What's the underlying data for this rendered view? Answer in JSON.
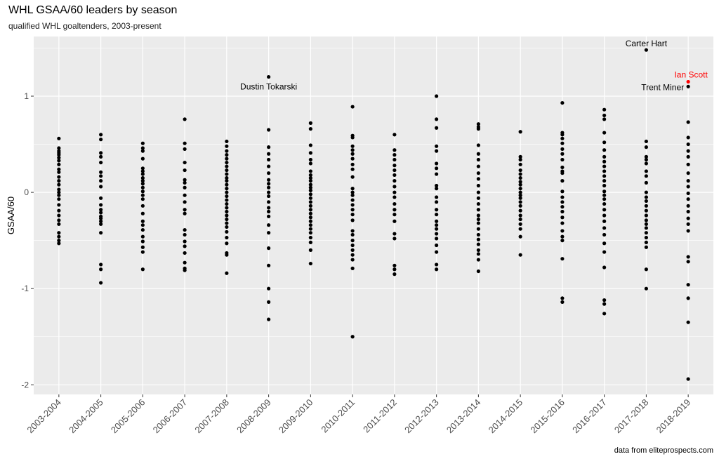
{
  "title": "WHL GSAA/60 leaders by season",
  "subtitle": "qualified WHL goaltenders, 2003-present",
  "caption": "data from eliteprospects.com",
  "colors": {
    "panel": "#ebebeb",
    "grid": "#ffffff",
    "point": "#000000",
    "highlight": "#ff0000"
  },
  "chart_data": {
    "type": "scatter",
    "xlabel": "",
    "ylabel": "GSAA/60",
    "ylim": [
      -2.1,
      1.62
    ],
    "yticks": [
      -2,
      -1,
      0,
      1
    ],
    "categories": [
      "2003-2004",
      "2004-2005",
      "2005-2006",
      "2006-2007",
      "2007-2008",
      "2008-2009",
      "2009-2010",
      "2010-2011",
      "2011-2012",
      "2012-2013",
      "2013-2014",
      "2014-2015",
      "2015-2016",
      "2016-2017",
      "2017-2018",
      "2018-2019"
    ],
    "series": [
      {
        "values": [
          [
            0.56,
            0.46,
            0.43,
            0.41,
            0.39,
            0.36,
            0.33,
            0.29,
            0.24,
            0.21,
            0.16,
            0.12,
            0.08,
            0.03,
            0.0,
            -0.03,
            -0.07,
            -0.13,
            -0.19,
            -0.24,
            -0.29,
            -0.33,
            -0.42,
            -0.46,
            -0.5,
            -0.53
          ],
          [
            0.6,
            0.55,
            0.41,
            0.37,
            0.31,
            0.21,
            0.17,
            0.12,
            0.06,
            -0.06,
            -0.13,
            -0.18,
            -0.21,
            -0.25,
            -0.27,
            -0.3,
            -0.33,
            -0.42,
            -0.75,
            -0.8,
            -0.94
          ],
          [
            0.51,
            0.46,
            0.43,
            0.35,
            0.25,
            0.22,
            0.19,
            0.15,
            0.12,
            0.09,
            0.05,
            0.01,
            -0.03,
            -0.07,
            -0.14,
            -0.22,
            -0.3,
            -0.34,
            -0.39,
            -0.46,
            -0.51,
            -0.57,
            -0.62,
            -0.8
          ],
          [
            0.76,
            0.51,
            0.45,
            0.31,
            0.23,
            0.13,
            0.1,
            0.05,
            -0.03,
            -0.1,
            -0.18,
            -0.22,
            -0.39,
            -0.44,
            -0.51,
            -0.56,
            -0.63,
            -0.73,
            -0.79,
            -0.81
          ],
          [
            0.53,
            0.48,
            0.43,
            0.39,
            0.35,
            0.31,
            0.27,
            0.23,
            0.19,
            0.15,
            0.12,
            0.08,
            0.04,
            0.0,
            -0.04,
            -0.08,
            -0.12,
            -0.16,
            -0.2,
            -0.24,
            -0.28,
            -0.32,
            -0.36,
            -0.41,
            -0.47,
            -0.53,
            -0.63,
            -0.65,
            -0.84
          ],
          [
            1.2,
            0.65,
            0.47,
            0.4,
            0.34,
            0.27,
            0.2,
            0.13,
            0.09,
            0.05,
            0.0,
            -0.04,
            -0.1,
            -0.16,
            -0.2,
            -0.25,
            -0.34,
            -0.42,
            -0.58,
            -0.76,
            -1.0,
            -1.14,
            -1.32
          ],
          [
            0.72,
            0.66,
            0.49,
            0.41,
            0.34,
            0.3,
            0.22,
            0.18,
            0.15,
            0.12,
            0.08,
            0.05,
            0.02,
            -0.02,
            -0.06,
            -0.1,
            -0.14,
            -0.18,
            -0.22,
            -0.26,
            -0.3,
            -0.34,
            -0.38,
            -0.42,
            -0.47,
            -0.52,
            -0.6,
            -0.74
          ],
          [
            0.89,
            0.59,
            0.57,
            0.48,
            0.44,
            0.4,
            0.35,
            0.29,
            0.24,
            0.16,
            0.04,
            0.0,
            -0.03,
            -0.08,
            -0.13,
            -0.18,
            -0.23,
            -0.29,
            -0.4,
            -0.44,
            -0.5,
            -0.55,
            -0.6,
            -0.65,
            -0.7,
            -0.79,
            -1.5
          ],
          [
            0.6,
            0.44,
            0.39,
            0.34,
            0.28,
            0.23,
            0.18,
            0.12,
            0.06,
            0.0,
            -0.05,
            -0.12,
            -0.18,
            -0.23,
            -0.3,
            -0.43,
            -0.48,
            -0.76,
            -0.8,
            -0.85
          ],
          [
            1.0,
            0.76,
            0.67,
            0.48,
            0.43,
            0.3,
            0.25,
            0.19,
            0.07,
            0.04,
            -0.05,
            -0.1,
            -0.18,
            -0.23,
            -0.3,
            -0.34,
            -0.38,
            -0.43,
            -0.48,
            -0.55,
            -0.62,
            -0.75,
            -0.8
          ],
          [
            0.71,
            0.68,
            0.66,
            0.49,
            0.4,
            0.34,
            0.27,
            0.2,
            0.14,
            0.07,
            0.0,
            -0.06,
            -0.12,
            -0.18,
            -0.24,
            -0.28,
            -0.32,
            -0.38,
            -0.44,
            -0.49,
            -0.54,
            -0.6,
            -0.64,
            -0.7,
            -0.82
          ],
          [
            0.63,
            0.37,
            0.34,
            0.29,
            0.23,
            0.19,
            0.15,
            0.11,
            0.08,
            0.04,
            0.0,
            -0.03,
            -0.06,
            -0.1,
            -0.14,
            -0.19,
            -0.24,
            -0.28,
            -0.33,
            -0.38,
            -0.46,
            -0.65
          ],
          [
            0.93,
            0.62,
            0.6,
            0.56,
            0.51,
            0.45,
            0.4,
            0.34,
            0.26,
            0.22,
            0.2,
            0.12,
            0.01,
            -0.05,
            -0.1,
            -0.15,
            -0.2,
            -0.26,
            -0.32,
            -0.4,
            -0.46,
            -0.5,
            -0.69,
            -1.1,
            -1.14
          ],
          [
            0.86,
            0.8,
            0.76,
            0.62,
            0.52,
            0.44,
            0.37,
            0.32,
            0.27,
            0.22,
            0.17,
            0.12,
            0.07,
            0.01,
            -0.03,
            -0.07,
            -0.12,
            -0.18,
            -0.24,
            -0.3,
            -0.37,
            -0.44,
            -0.53,
            -0.62,
            -0.78,
            -1.12,
            -1.16,
            -1.26
          ],
          [
            1.48,
            0.53,
            0.47,
            0.37,
            0.34,
            0.3,
            0.22,
            0.17,
            0.1,
            0.0,
            -0.05,
            -0.09,
            -0.14,
            -0.19,
            -0.24,
            -0.29,
            -0.33,
            -0.37,
            -0.42,
            -0.47,
            -0.52,
            -0.57,
            -0.8,
            -1.0
          ],
          [
            1.15,
            1.1,
            0.73,
            0.57,
            0.5,
            0.43,
            0.37,
            0.29,
            0.2,
            0.12,
            0.06,
            -0.01,
            -0.07,
            -0.14,
            -0.2,
            -0.27,
            -0.33,
            -0.4,
            -0.67,
            -0.72,
            -0.96,
            -1.1,
            -1.35,
            -1.94
          ]
        ]
      }
    ],
    "annotations": [
      {
        "category": "2008-2009",
        "label": "Dustin Tokarski",
        "y": 1.2,
        "highlight": false
      },
      {
        "category": "2017-2018",
        "label": "Carter Hart",
        "y": 1.48,
        "highlight": false
      },
      {
        "category": "2018-2019",
        "label": "Ian Scott",
        "y": 1.15,
        "highlight": true
      },
      {
        "category": "2018-2019",
        "label": "Trent Miner",
        "y": 1.1,
        "highlight": false
      }
    ]
  }
}
